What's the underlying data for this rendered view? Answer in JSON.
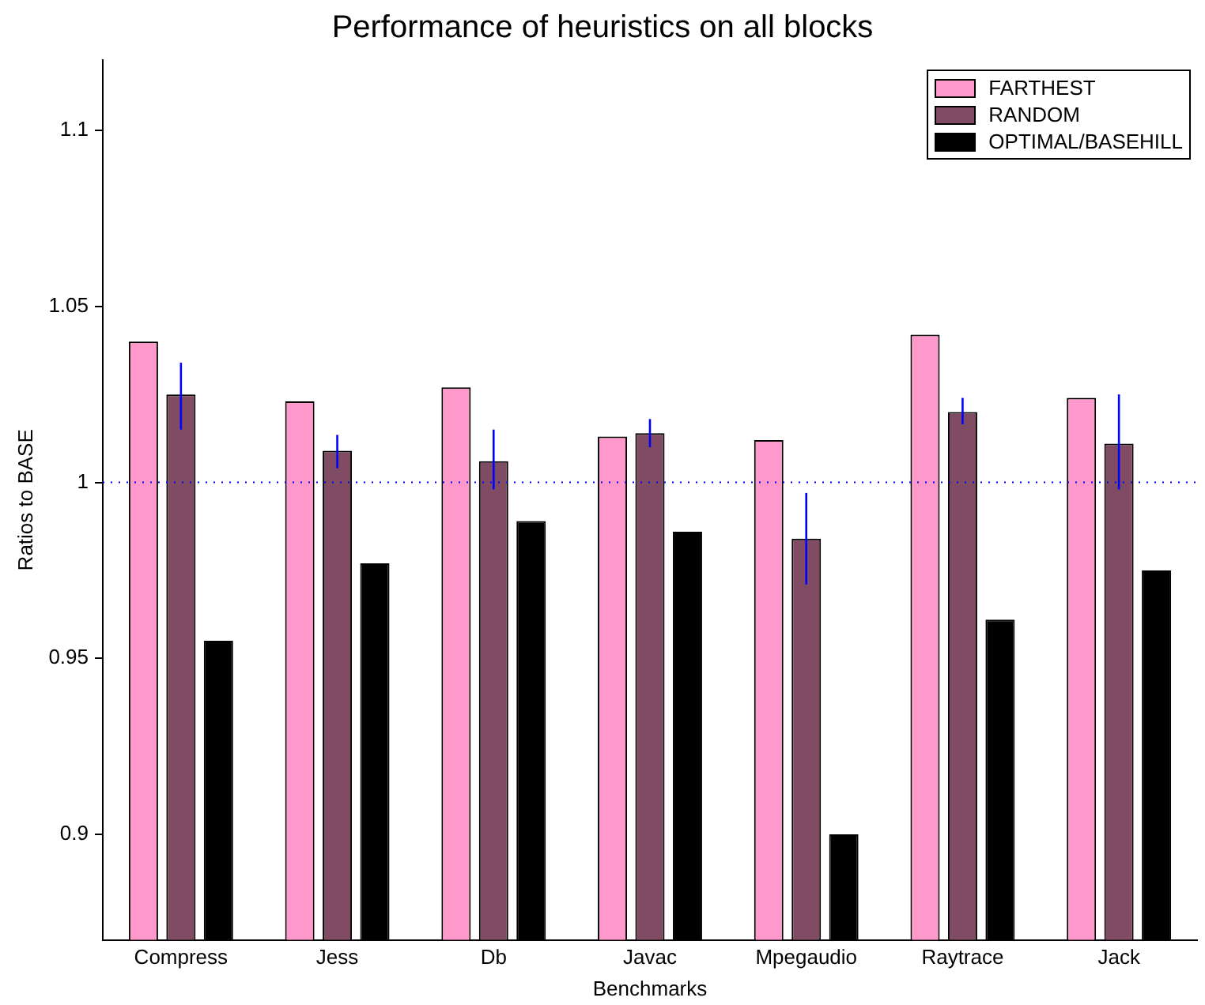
{
  "chart_data": {
    "type": "bar",
    "title": "Performance of heuristics on all blocks",
    "xlabel": "Benchmarks",
    "ylabel": "Ratios to BASE",
    "categories": [
      "Compress",
      "Jess",
      "Db",
      "Javac",
      "Mpegaudio",
      "Raytrace",
      "Jack"
    ],
    "series": [
      {
        "name": "FARTHEST",
        "color": "#ff99cc",
        "values": [
          1.04,
          1.023,
          1.027,
          1.013,
          1.012,
          1.042,
          1.024
        ]
      },
      {
        "name": "RANDOM",
        "color": "#7f4c63",
        "values": [
          1.025,
          1.009,
          1.006,
          1.014,
          0.984,
          1.02,
          1.011
        ],
        "errors": [
          [
            1.015,
            1.034
          ],
          [
            1.004,
            1.0135
          ],
          [
            0.998,
            1.015
          ],
          [
            1.01,
            1.018
          ],
          [
            0.971,
            0.997
          ],
          [
            1.0165,
            1.024
          ],
          [
            0.998,
            1.025
          ]
        ]
      },
      {
        "name": "OPTIMAL/BASEHILL",
        "color": "#000000",
        "values": [
          0.955,
          0.977,
          0.989,
          0.986,
          0.9,
          0.961,
          0.975
        ]
      }
    ],
    "ylim": [
      0.87,
      1.12
    ],
    "yticks": [
      0.9,
      0.95,
      1,
      1.05,
      1.1
    ],
    "ref_lines": [
      {
        "axis": "y",
        "value": 1,
        "color": "#0000ff",
        "line_style": "dotted"
      }
    ],
    "grid": false,
    "legend": "top right"
  }
}
